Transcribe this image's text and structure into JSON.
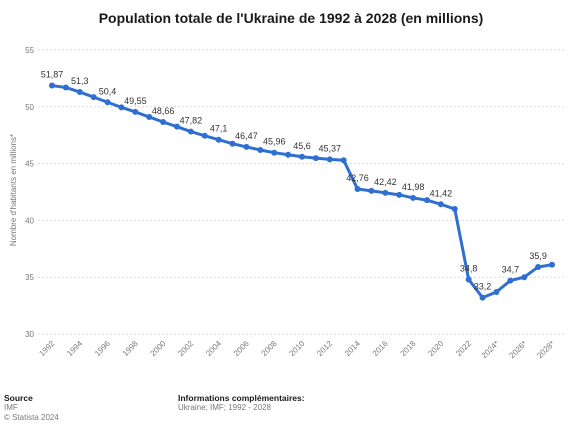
{
  "title": "Population totale de l'Ukraine de 1992 à 2028 (en millions)",
  "footer": {
    "source_heading": "Source",
    "source_lines": [
      "IMF",
      "© Statista 2024"
    ],
    "info_heading": "Informations complémentaires:",
    "info_line": "Ukraine; IMF; 1992 - 2028"
  },
  "chart_data": {
    "type": "line",
    "title": "Population totale de l'Ukraine de 1992 à 2028 (en millions)",
    "ylabel": "Nombre d'habitants en millions*",
    "xlabel": "",
    "ylim": [
      30,
      55
    ],
    "yticks": [
      30,
      35,
      40,
      45,
      50,
      55
    ],
    "xtick_labels": [
      "1992",
      "1994",
      "1996",
      "1998",
      "2000",
      "2002",
      "2004",
      "2006",
      "2008",
      "2010",
      "2012",
      "2014",
      "2016",
      "2018",
      "2020",
      "2022",
      "2024*",
      "2026*",
      "2028*"
    ],
    "grid": true,
    "color": "#2f6fd1",
    "x": [
      1992,
      1993,
      1994,
      1995,
      1996,
      1997,
      1998,
      1999,
      2000,
      2001,
      2002,
      2003,
      2004,
      2005,
      2006,
      2007,
      2008,
      2009,
      2010,
      2011,
      2012,
      2013,
      2014,
      2015,
      2016,
      2017,
      2018,
      2019,
      2020,
      2021,
      2022,
      2023,
      2024,
      2025,
      2026,
      2027,
      2028
    ],
    "values": [
      51.87,
      51.7,
      51.3,
      50.85,
      50.4,
      49.95,
      49.55,
      49.1,
      48.66,
      48.25,
      47.82,
      47.45,
      47.1,
      46.75,
      46.47,
      46.2,
      45.96,
      45.78,
      45.6,
      45.48,
      45.37,
      45.3,
      42.76,
      42.6,
      42.42,
      42.25,
      41.98,
      41.78,
      41.42,
      41.0,
      34.8,
      33.2,
      33.7,
      34.7,
      35.0,
      35.9,
      36.1
    ],
    "data_labels": [
      {
        "year": 1992,
        "label": "51,87"
      },
      {
        "year": 1994,
        "label": "51,3"
      },
      {
        "year": 1996,
        "label": "50,4"
      },
      {
        "year": 1998,
        "label": "49,55"
      },
      {
        "year": 2000,
        "label": "48,66"
      },
      {
        "year": 2002,
        "label": "47,82"
      },
      {
        "year": 2004,
        "label": "47,1"
      },
      {
        "year": 2006,
        "label": "46,47"
      },
      {
        "year": 2008,
        "label": "45,96"
      },
      {
        "year": 2010,
        "label": "45,6"
      },
      {
        "year": 2012,
        "label": "45,37"
      },
      {
        "year": 2014,
        "label": "42,76"
      },
      {
        "year": 2016,
        "label": "42,42"
      },
      {
        "year": 2018,
        "label": "41,98"
      },
      {
        "year": 2020,
        "label": "41,42"
      },
      {
        "year": 2022,
        "label": "34,8"
      },
      {
        "year": 2023,
        "label": "33,2"
      },
      {
        "year": 2025,
        "label": "34,7"
      },
      {
        "year": 2027,
        "label": "35,9"
      }
    ]
  }
}
